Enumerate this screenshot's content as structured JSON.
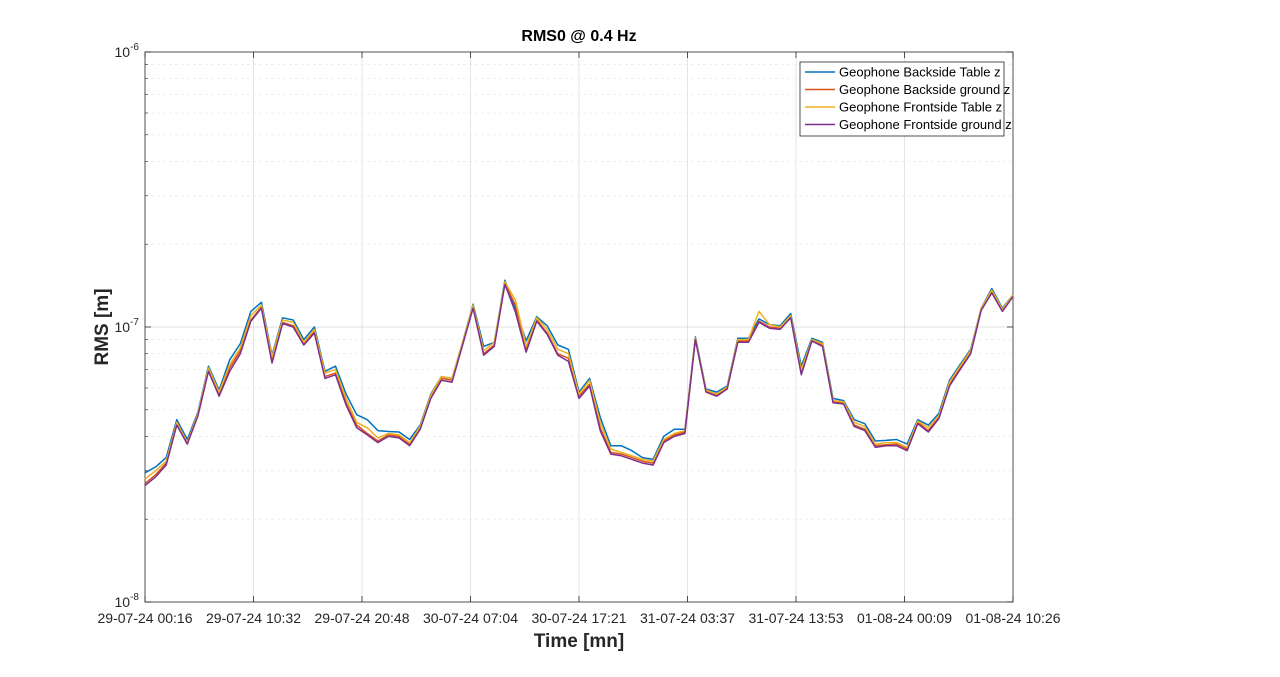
{
  "chart_data": {
    "type": "line",
    "title": "RMS0 @ 0.4 Hz",
    "xlabel": "Time [mn]",
    "ylabel": "RMS [m]",
    "yscale": "log",
    "ylim": [
      1e-08,
      1e-06
    ],
    "y_ticks": [
      {
        "value": 1e-08,
        "base": "10",
        "exp": "-8"
      },
      {
        "value": 1e-07,
        "base": "10",
        "exp": "-7"
      },
      {
        "value": 1e-06,
        "base": "10",
        "exp": "-6"
      }
    ],
    "x_ticks": [
      "29-07-24 00:16",
      "29-07-24 10:32",
      "29-07-24 20:48",
      "30-07-24 07:04",
      "30-07-24 17:21",
      "31-07-24 03:37",
      "31-07-24 13:53",
      "01-08-24 00:09",
      "01-08-24 10:26"
    ],
    "grid": true,
    "legend_position": "top-right",
    "series": [
      {
        "name": "Geophone Backside Table z",
        "color": "#0072BD",
        "values": [
          2.95e-08,
          3.1e-08,
          3.35e-08,
          4.6e-08,
          3.9e-08,
          4.9e-08,
          7.2e-08,
          5.9e-08,
          7.6e-08,
          8.7e-08,
          1.14e-07,
          1.23e-07,
          7.9e-08,
          1.08e-07,
          1.06e-07,
          9e-08,
          1e-07,
          6.9e-08,
          7.2e-08,
          5.7e-08,
          4.8e-08,
          4.6e-08,
          4.2e-08,
          4.17e-08,
          4.15e-08,
          3.9e-08,
          4.4e-08,
          5.7e-08,
          6.6e-08,
          6.5e-08,
          8.8e-08,
          1.21e-07,
          8.5e-08,
          8.8e-08,
          1.48e-07,
          1.16e-07,
          8.9e-08,
          1.09e-07,
          1.01e-07,
          8.6e-08,
          8.3e-08,
          5.8e-08,
          6.5e-08,
          4.7e-08,
          3.7e-08,
          3.7e-08,
          3.55e-08,
          3.35e-08,
          3.3e-08,
          4e-08,
          4.25e-08,
          4.25e-08,
          9.2e-08,
          5.95e-08,
          5.8e-08,
          6.1e-08,
          9.1e-08,
          9.1e-08,
          1.07e-07,
          1.02e-07,
          1.01e-07,
          1.12e-07,
          7.2e-08,
          9.1e-08,
          8.8e-08,
          5.5e-08,
          5.4e-08,
          4.6e-08,
          4.45e-08,
          3.85e-08,
          3.87e-08,
          3.9e-08,
          3.75e-08,
          4.6e-08,
          4.4e-08,
          4.85e-08,
          6.4e-08,
          7.3e-08,
          8.3e-08,
          1.17e-07,
          1.38e-07,
          1.17e-07,
          1.31e-07
        ]
      },
      {
        "name": "Geophone Backside ground z",
        "color": "#D95319",
        "values": [
          2.7e-08,
          2.9e-08,
          3.2e-08,
          4.5e-08,
          3.8e-08,
          4.8e-08,
          7e-08,
          5.7e-08,
          7.1e-08,
          8.2e-08,
          1.06e-07,
          1.18e-07,
          7.5e-08,
          1.04e-07,
          1.01e-07,
          8.7e-08,
          9.6e-08,
          6.6e-08,
          6.8e-08,
          5.3e-08,
          4.4e-08,
          4.1e-08,
          3.85e-08,
          4.05e-08,
          4e-08,
          3.75e-08,
          4.3e-08,
          5.6e-08,
          6.5e-08,
          6.4e-08,
          8.7e-08,
          1.18e-07,
          8e-08,
          8.6e-08,
          1.44e-07,
          1.2e-07,
          8.3e-08,
          1.06e-07,
          9.5e-08,
          8e-08,
          7.7e-08,
          5.6e-08,
          6.2e-08,
          4.3e-08,
          3.5e-08,
          3.45e-08,
          3.35e-08,
          3.25e-08,
          3.2e-08,
          3.85e-08,
          4.05e-08,
          4.15e-08,
          9.1e-08,
          5.85e-08,
          5.65e-08,
          6e-08,
          8.9e-08,
          8.9e-08,
          1.05e-07,
          1e-07,
          9.9e-08,
          1.09e-07,
          6.8e-08,
          9e-08,
          8.6e-08,
          5.35e-08,
          5.3e-08,
          4.4e-08,
          4.25e-08,
          3.7e-08,
          3.73e-08,
          3.75e-08,
          3.6e-08,
          4.5e-08,
          4.2e-08,
          4.7e-08,
          6.2e-08,
          7.1e-08,
          8.1e-08,
          1.16e-07,
          1.34e-07,
          1.15e-07,
          1.3e-07
        ]
      },
      {
        "name": "Geophone Frontside Table z",
        "color": "#EDB120",
        "values": [
          2.8e-08,
          3e-08,
          3.25e-08,
          4.5e-08,
          3.8e-08,
          4.85e-08,
          7.1e-08,
          5.8e-08,
          7.3e-08,
          8.4e-08,
          1.1e-07,
          1.2e-07,
          7.8e-08,
          1.06e-07,
          1.04e-07,
          8.8e-08,
          9.8e-08,
          6.8e-08,
          7e-08,
          5.5e-08,
          4.5e-08,
          4.3e-08,
          3.95e-08,
          4.1e-08,
          4.05e-08,
          3.8e-08,
          4.35e-08,
          5.65e-08,
          6.6e-08,
          6.5e-08,
          8.8e-08,
          1.2e-07,
          8.2e-08,
          8.8e-08,
          1.46e-07,
          1.25e-07,
          8.5e-08,
          1.08e-07,
          9.8e-08,
          8.3e-08,
          8e-08,
          5.7e-08,
          6.4e-08,
          4.5e-08,
          3.6e-08,
          3.5e-08,
          3.4e-08,
          3.3e-08,
          3.25e-08,
          3.9e-08,
          4.1e-08,
          4.2e-08,
          9.1e-08,
          5.9e-08,
          5.7e-08,
          6.05e-08,
          9e-08,
          9e-08,
          1.14e-07,
          1.02e-07,
          1e-07,
          1.1e-07,
          7e-08,
          9e-08,
          8.7e-08,
          5.4e-08,
          5.35e-08,
          4.5e-08,
          4.35e-08,
          3.75e-08,
          3.8e-08,
          3.8e-08,
          3.65e-08,
          4.55e-08,
          4.3e-08,
          4.75e-08,
          6.3e-08,
          7.2e-08,
          8.2e-08,
          1.17e-07,
          1.36e-07,
          1.16e-07,
          1.31e-07
        ]
      },
      {
        "name": "Geophone Frontside ground z",
        "color": "#7E2F8E",
        "values": [
          2.65e-08,
          2.85e-08,
          3.15e-08,
          4.4e-08,
          3.75e-08,
          4.75e-08,
          6.9e-08,
          5.6e-08,
          6.9e-08,
          8e-08,
          1.05e-07,
          1.17e-07,
          7.4e-08,
          1.03e-07,
          1e-07,
          8.6e-08,
          9.5e-08,
          6.5e-08,
          6.7e-08,
          5.2e-08,
          4.3e-08,
          4.05e-08,
          3.8e-08,
          4e-08,
          3.95e-08,
          3.7e-08,
          4.25e-08,
          5.5e-08,
          6.4e-08,
          6.3e-08,
          8.6e-08,
          1.17e-07,
          7.9e-08,
          8.5e-08,
          1.43e-07,
          1.13e-07,
          8.1e-08,
          1.05e-07,
          9.4e-08,
          7.9e-08,
          7.5e-08,
          5.5e-08,
          6.1e-08,
          4.2e-08,
          3.45e-08,
          3.4e-08,
          3.3e-08,
          3.2e-08,
          3.15e-08,
          3.8e-08,
          4e-08,
          4.1e-08,
          9e-08,
          5.8e-08,
          5.6e-08,
          5.95e-08,
          8.8e-08,
          8.8e-08,
          1.04e-07,
          9.9e-08,
          9.8e-08,
          1.08e-07,
          6.7e-08,
          8.9e-08,
          8.5e-08,
          5.3e-08,
          5.25e-08,
          4.35e-08,
          4.2e-08,
          3.65e-08,
          3.7e-08,
          3.7e-08,
          3.55e-08,
          4.45e-08,
          4.15e-08,
          4.65e-08,
          6.1e-08,
          7e-08,
          8e-08,
          1.15e-07,
          1.33e-07,
          1.14e-07,
          1.29e-07
        ]
      }
    ]
  }
}
